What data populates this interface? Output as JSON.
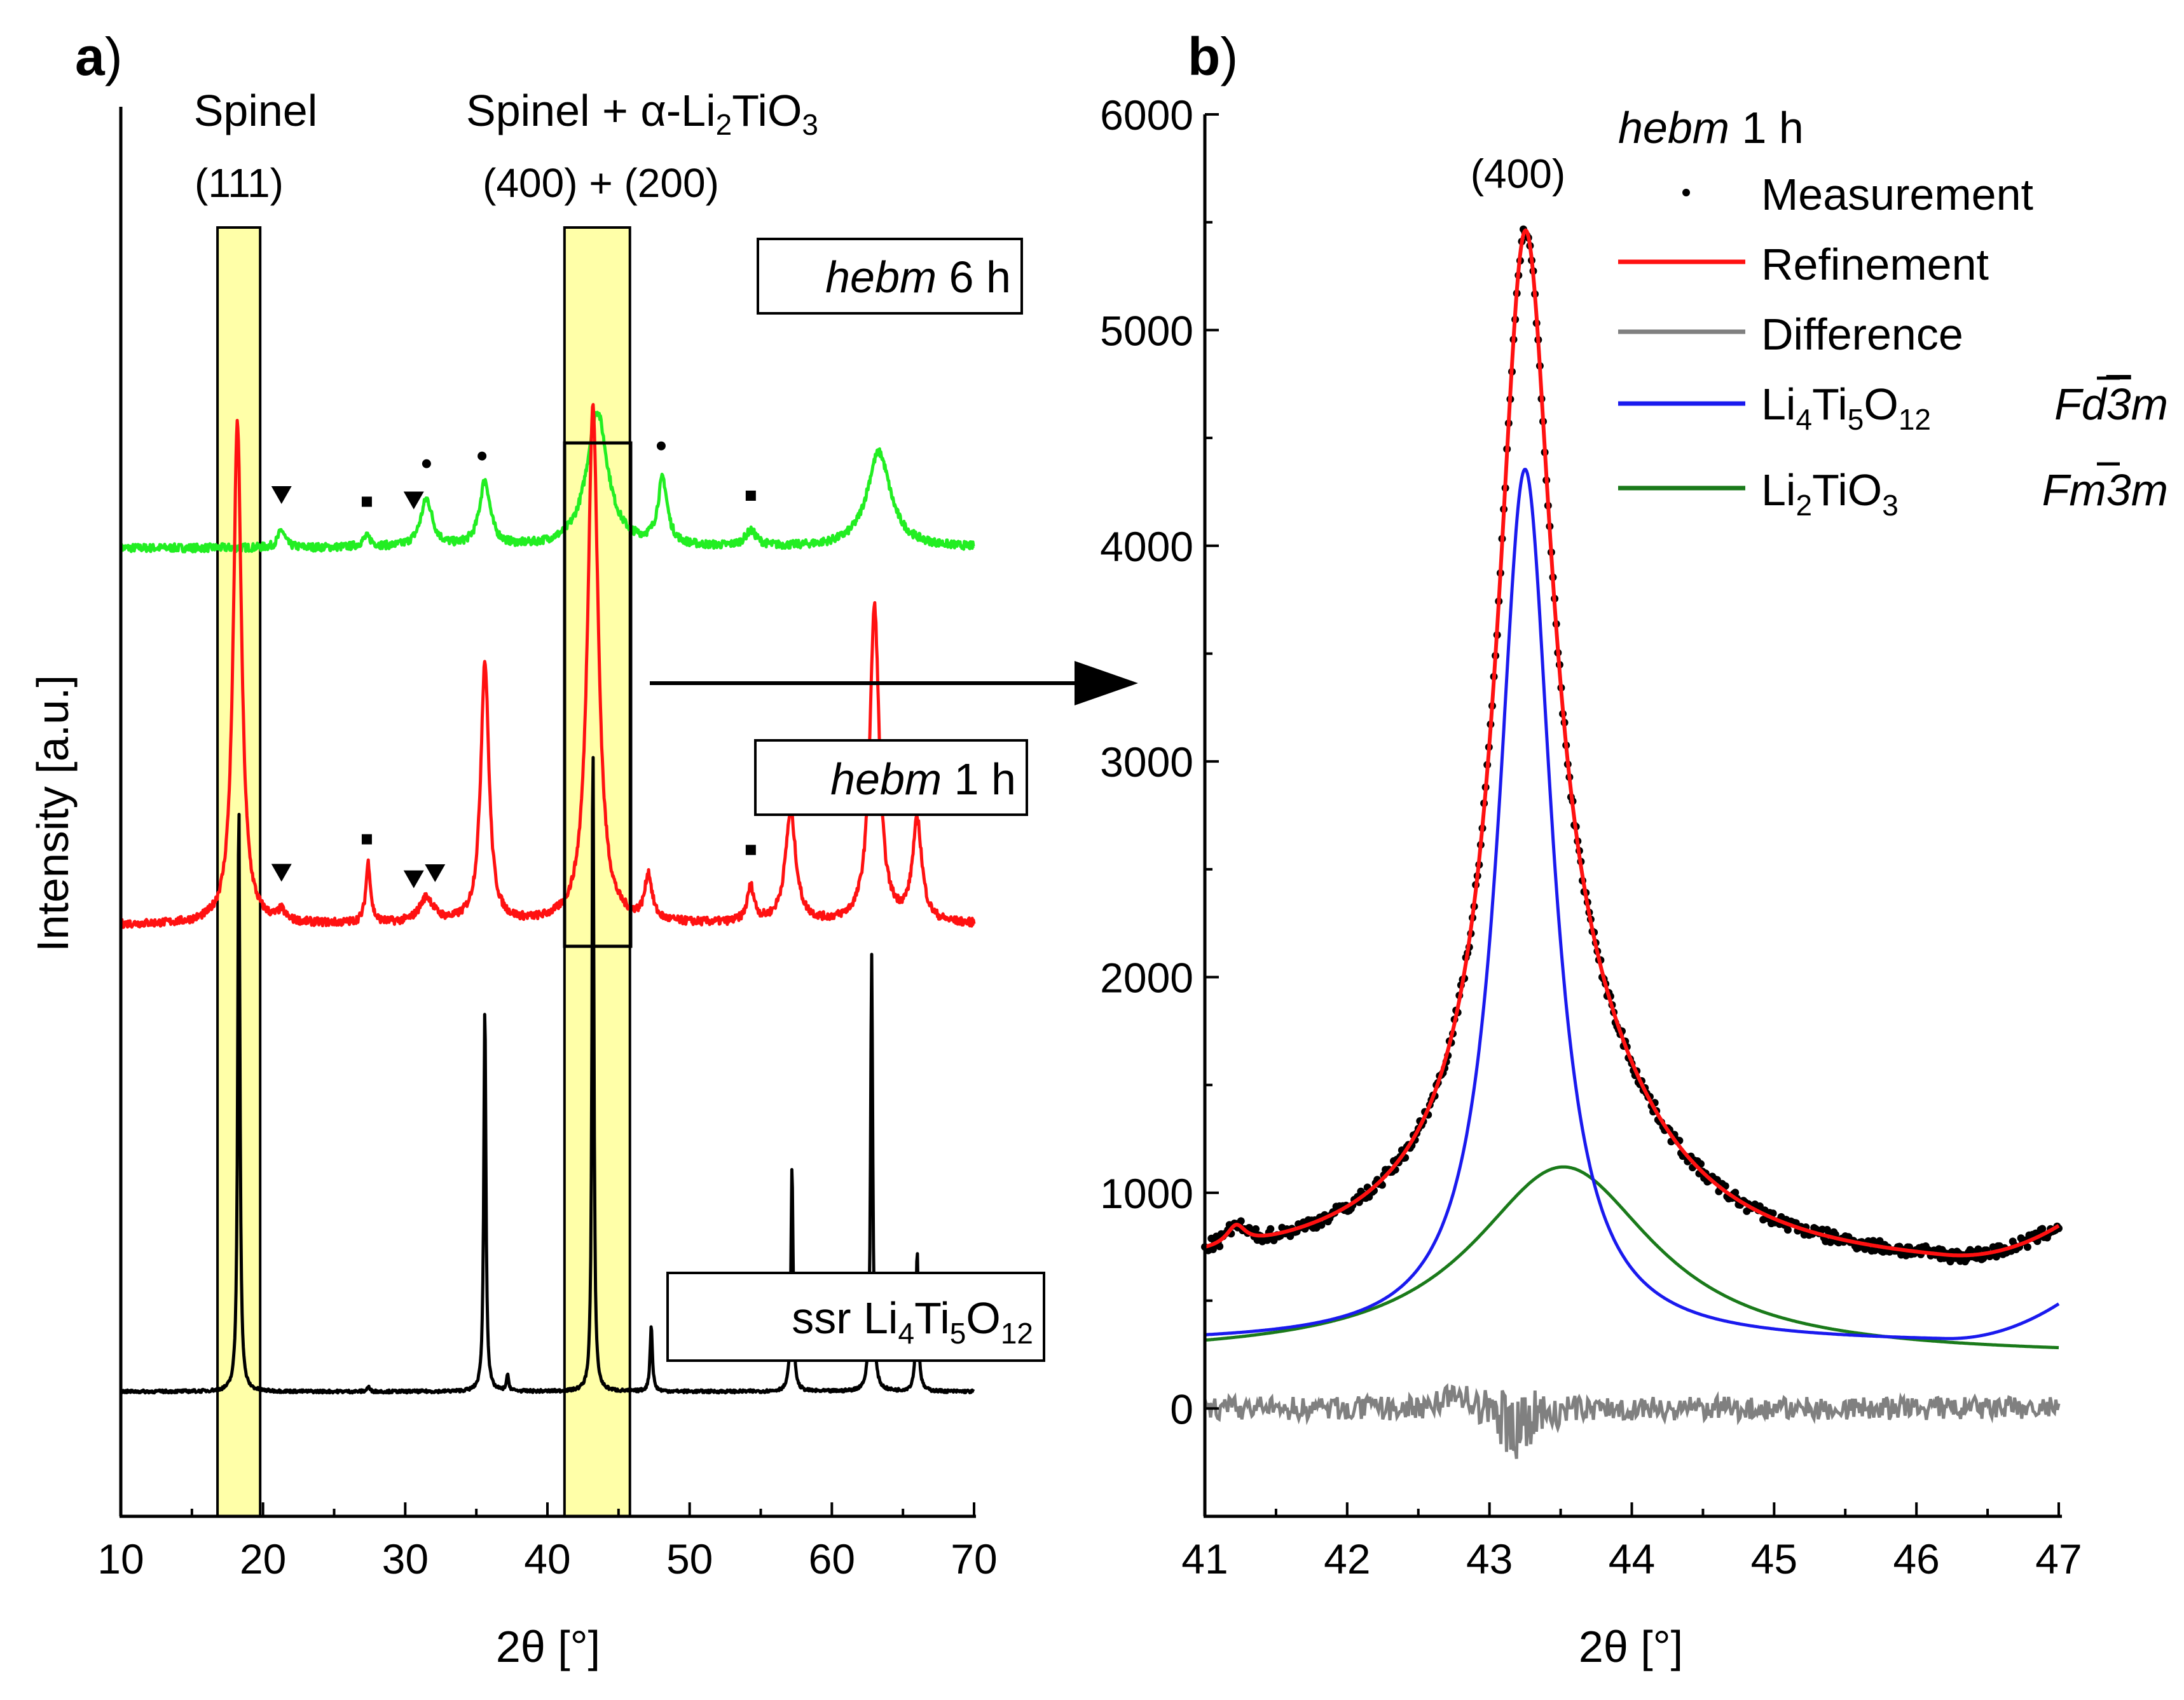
{
  "chart_data": [
    {
      "panel": "a",
      "panel_letter": "a",
      "panel_paren": ")",
      "type": "line",
      "xlabel": "2θ [°]",
      "ylabel": "Intensity [a.u.]",
      "xlim": [
        10,
        70
      ],
      "xticks": [
        10,
        20,
        30,
        40,
        50,
        60,
        70
      ],
      "highlight_regions": [
        {
          "name": "spinel-111",
          "x0": 16.8,
          "x1": 19.8,
          "label_top": "Spinel",
          "label_bottom": "(111)"
        },
        {
          "name": "spinel-400-li2tio3-200",
          "x0": 41.2,
          "x1": 45.8,
          "label_top_prefix": "Spinel + ",
          "label_top_alpha": "α",
          "label_top_suffix": "-Li",
          "label_sub_2": "2",
          "label_top_end": "TiO",
          "label_sub_3": "3",
          "label_bottom": "(400) + (200)"
        }
      ],
      "series": [
        {
          "name": "hebm 6 h",
          "label_italic": "hebm",
          "label_rest": " 6 h",
          "color": "#22ee22",
          "baseline": 0.75,
          "noise": 0.008,
          "peaks": [
            [
              21.3,
              0.035,
              0.3
            ],
            [
              27.3,
              0.02,
              0.4
            ],
            [
              31.5,
              0.095,
              0.5
            ],
            [
              35.6,
              0.13,
              0.45
            ],
            [
              43.5,
              0.27,
              0.9
            ],
            [
              48.1,
              0.13,
              0.4
            ],
            [
              54.3,
              0.03,
              0.5
            ],
            [
              63.3,
              0.19,
              1.0
            ]
          ]
        },
        {
          "name": "hebm 1 h",
          "label_italic": "hebm",
          "label_rest": " 1 h",
          "color": "#ff1111",
          "baseline": 0.0,
          "noise": 0.008,
          "peaks": [
            [
              18.2,
              1.0,
              0.35
            ],
            [
              21.3,
              0.02,
              0.3
            ],
            [
              27.4,
              0.12,
              0.2
            ],
            [
              31.5,
              0.05,
              0.6
            ],
            [
              35.6,
              0.52,
              0.35
            ],
            [
              43.2,
              1.03,
              0.45
            ],
            [
              47.1,
              0.09,
              0.3
            ],
            [
              54.3,
              0.07,
              0.3
            ],
            [
              57.1,
              0.22,
              0.45
            ],
            [
              63.0,
              0.63,
              0.4
            ],
            [
              66.0,
              0.2,
              0.4
            ]
          ]
        },
        {
          "name": "ssr Li4Ti5O12",
          "label_text": "ssr Li",
          "label_sub_4": "4",
          "label_ti": "Ti",
          "label_sub_5": "5",
          "label_o": "O",
          "label_sub_12": "12",
          "color": "#000000",
          "baseline": -0.93,
          "noise": 0.003,
          "peaks": [
            [
              18.3,
              1.18,
              0.09
            ],
            [
              35.6,
              0.77,
              0.09
            ],
            [
              37.2,
              0.03,
              0.1
            ],
            [
              43.2,
              1.3,
              0.08
            ],
            [
              47.3,
              0.13,
              0.1
            ],
            [
              57.2,
              0.45,
              0.09
            ],
            [
              62.8,
              0.87,
              0.09
            ],
            [
              66.0,
              0.28,
              0.1
            ],
            [
              27.4,
              0.01,
              0.1
            ]
          ]
        }
      ],
      "markers": [
        {
          "symbol": "triangle",
          "x": 21.3,
          "series": "hebm 6 h"
        },
        {
          "symbol": "square",
          "x": 27.3,
          "series": "hebm 6 h"
        },
        {
          "symbol": "triangle",
          "x": 30.6,
          "series": "hebm 6 h"
        },
        {
          "symbol": "circle",
          "x": 31.5,
          "series": "hebm 6 h"
        },
        {
          "symbol": "circle",
          "x": 35.4,
          "series": "hebm 6 h"
        },
        {
          "symbol": "circle",
          "x": 48.0,
          "series": "hebm 6 h"
        },
        {
          "symbol": "square",
          "x": 54.3,
          "series": "hebm 6 h"
        },
        {
          "symbol": "triangle",
          "x": 21.3,
          "series": "hebm 1 h"
        },
        {
          "symbol": "square",
          "x": 27.3,
          "series": "hebm 1 h"
        },
        {
          "symbol": "triangle",
          "x": 30.6,
          "series": "hebm 1 h"
        },
        {
          "symbol": "triangle",
          "x": 32.1,
          "series": "hebm 1 h"
        },
        {
          "symbol": "square",
          "x": 54.3,
          "series": "hebm 1 h"
        }
      ],
      "zoom_box": {
        "x0": 41.2,
        "x1": 45.8
      }
    },
    {
      "panel": "b",
      "panel_letter": "b",
      "panel_paren": ")",
      "type": "line",
      "title_italic": "hebm",
      "title_rest": " 1 h",
      "xlabel": "2θ [°]",
      "xlim": [
        41,
        47
      ],
      "ylim": [
        -500,
        6000
      ],
      "xticks": [
        41,
        42,
        43,
        44,
        45,
        46,
        47
      ],
      "yticks": [
        0,
        1000,
        2000,
        3000,
        4000,
        5000,
        6000
      ],
      "annotation": {
        "text": "(400)",
        "x": 43.2,
        "y": 5660
      },
      "legend": [
        {
          "name": "Measurement",
          "style": "dot",
          "color": "#000000"
        },
        {
          "name": "Refinement",
          "style": "line",
          "color": "#ff1111"
        },
        {
          "name": "Difference",
          "style": "line",
          "color": "#808080"
        },
        {
          "name": "Li4Ti5O12",
          "style": "line",
          "color": "#1a1aee",
          "f1": "Li",
          "s1": "4",
          "f2": "Ti",
          "s2": "5",
          "f3": "O",
          "s3": "12",
          "sg_pre": "Fd",
          "sg_bar": "3",
          "sg_post": "m"
        },
        {
          "name": "Li2TiO3",
          "style": "line",
          "color": "#1a7a1a",
          "f1": "Li",
          "s1": "2",
          "f2": "TiO",
          "s2": "3",
          "sg_pre": "Fm",
          "sg_bar": "3",
          "sg_post": "m"
        }
      ],
      "series": [
        {
          "name": "Li4Ti5O12",
          "color": "#1a1aee",
          "base": 300,
          "base_slope": 0,
          "peak": [
            43.25,
            4055,
            0.23
          ],
          "edge_rise": 170
        },
        {
          "name": "Li2TiO3",
          "color": "#1a7a1a",
          "base": 240,
          "peak": [
            43.52,
            880,
            0.78
          ]
        },
        {
          "name": "Refinement",
          "color": "#ff1111",
          "bump": [
            41.22,
            90,
            0.08
          ]
        },
        {
          "name": "Difference",
          "color": "#808080",
          "mean": 0,
          "amp": 55
        },
        {
          "name": "Measurement",
          "color": "#000000",
          "scatter": 30
        }
      ]
    }
  ]
}
